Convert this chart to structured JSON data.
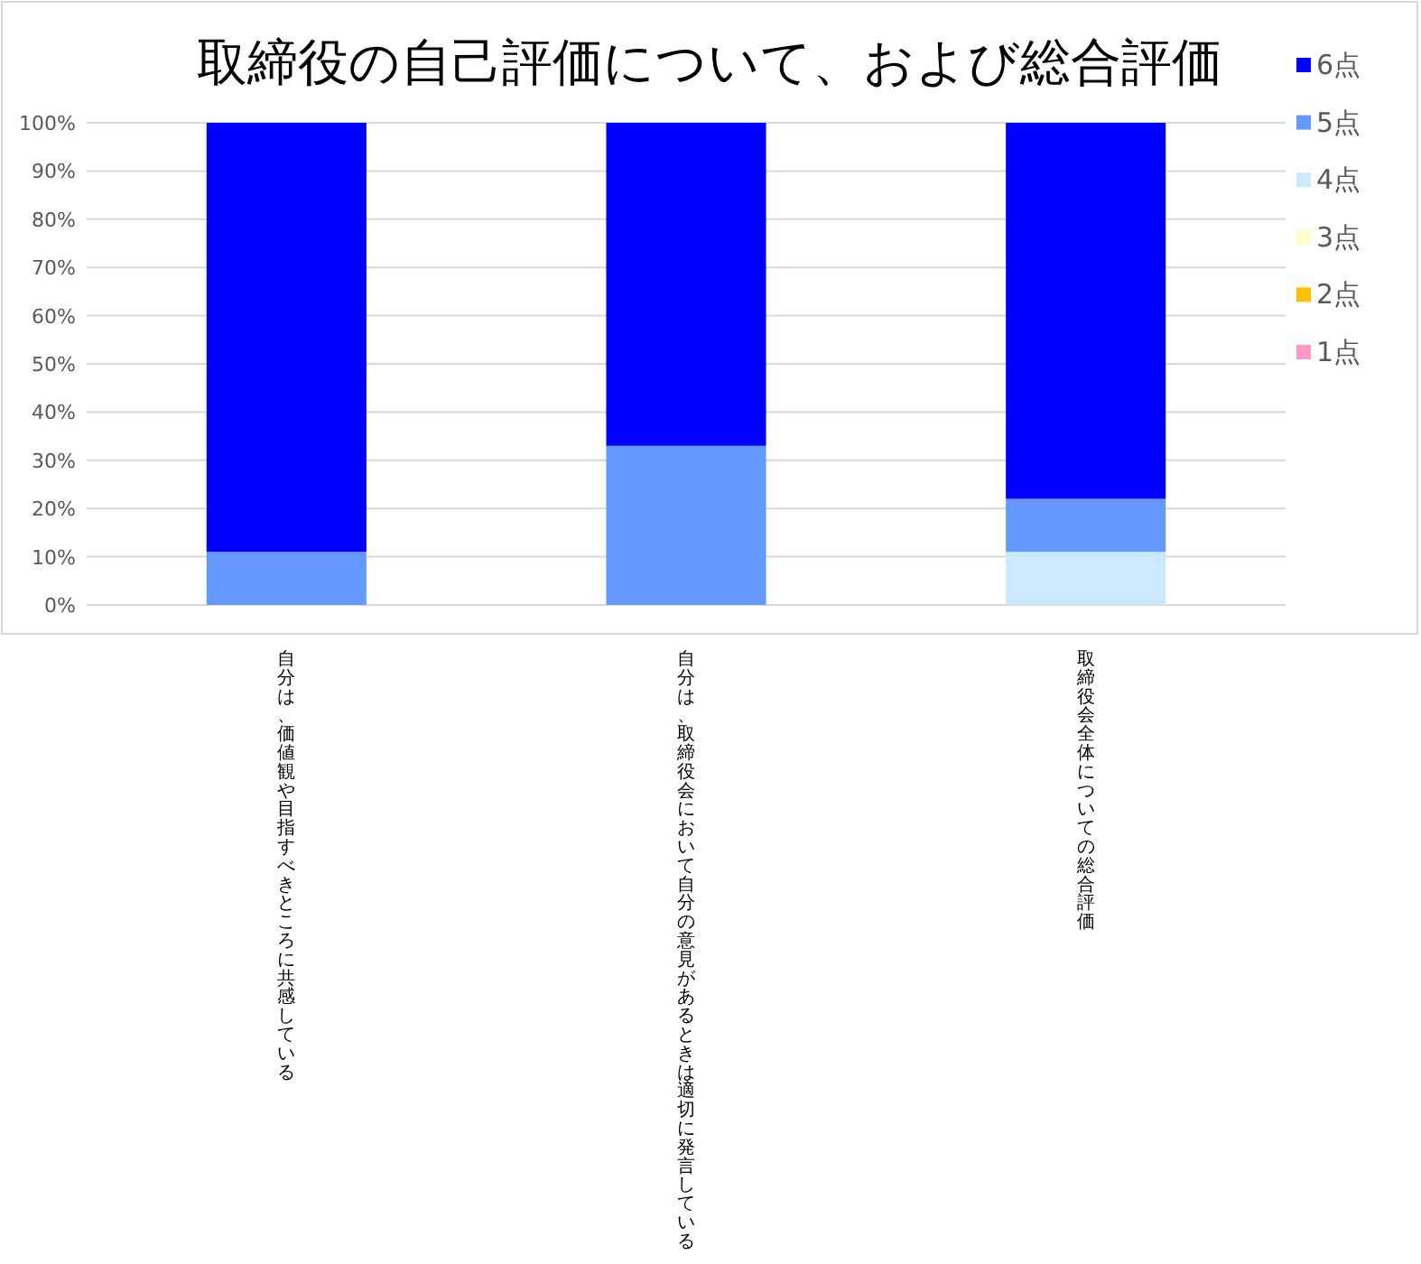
{
  "chart_data": {
    "type": "bar",
    "stacked": true,
    "title": "取締役の自己評価について、および総合評価",
    "categories": [
      "自分は、価値観や目指すべきところに共感している",
      "自分は、取締役会において自分の意見があるときは適切に発言している",
      "取締役会全体についての総合評価"
    ],
    "series": [
      {
        "name": "1点",
        "color": "#ff99cc",
        "values": [
          0,
          0,
          0
        ]
      },
      {
        "name": "2点",
        "color": "#ffc000",
        "values": [
          0,
          0,
          0
        ]
      },
      {
        "name": "3点",
        "color": "#ffffcc",
        "values": [
          0,
          0,
          0
        ]
      },
      {
        "name": "4点",
        "color": "#cce9ff",
        "values": [
          0,
          0,
          11
        ]
      },
      {
        "name": "5点",
        "color": "#6699ff",
        "values": [
          11,
          33,
          11
        ]
      },
      {
        "name": "6点",
        "color": "#0000ff",
        "values": [
          89,
          67,
          78
        ]
      }
    ],
    "ylim": [
      0,
      100
    ],
    "yticks": [
      {
        "value": 0,
        "label": "0%"
      },
      {
        "value": 10,
        "label": "10%"
      },
      {
        "value": 20,
        "label": "20%"
      },
      {
        "value": 30,
        "label": "30%"
      },
      {
        "value": 40,
        "label": "40%"
      },
      {
        "value": 50,
        "label": "50%"
      },
      {
        "value": 60,
        "label": "60%"
      },
      {
        "value": 70,
        "label": "70%"
      },
      {
        "value": 80,
        "label": "80%"
      },
      {
        "value": 90,
        "label": "90%"
      },
      {
        "value": 100,
        "label": "100%"
      }
    ],
    "grid": "y",
    "legend": "right"
  }
}
